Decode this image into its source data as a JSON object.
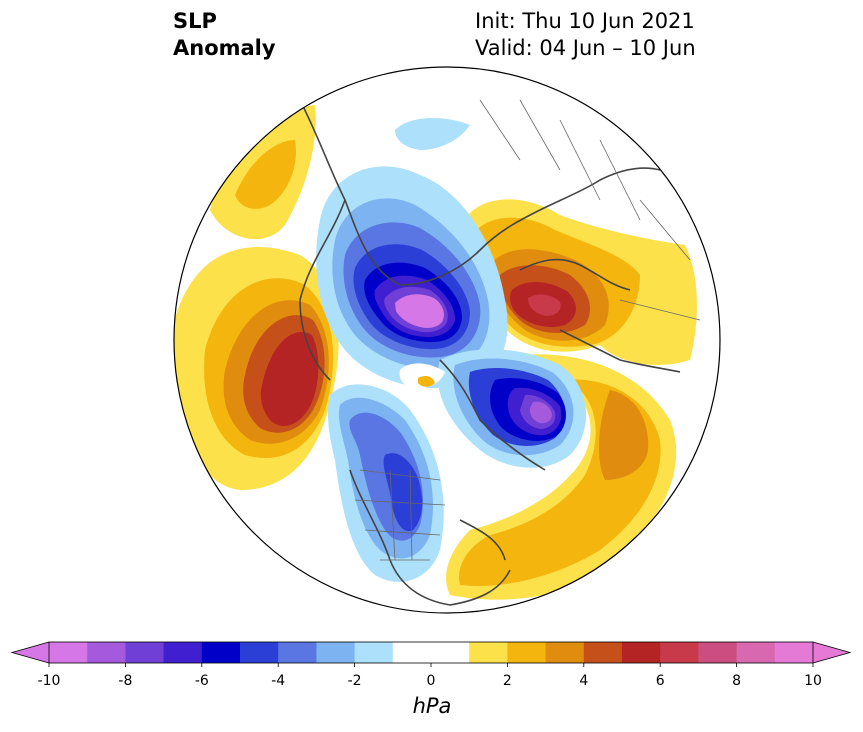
{
  "title": {
    "variable": "SLP",
    "variable_sub": "Anomaly",
    "init": "Init: Thu 10 Jun 2021",
    "valid": "Valid: 04 Jun – 10 Jun"
  },
  "colorbar": {
    "unit": "hPa",
    "ticks": [
      "-10",
      "-8",
      "-6",
      "-4",
      "-2",
      "0",
      "2",
      "4",
      "6",
      "8",
      "10"
    ],
    "colors": [
      "#d577e6",
      "#a55add",
      "#7040d6",
      "#3f1fcf",
      "#0000c8",
      "#2b3ed6",
      "#5a76e2",
      "#7db3f0",
      "#ade0fb",
      "#ffffff",
      "#ffffff",
      "#fde14a",
      "#f3b50e",
      "#e08c0f",
      "#c6501a",
      "#b52424",
      "#c83a4a",
      "#cc4e80",
      "#d868b0",
      "#e47ad6"
    ]
  },
  "map": {
    "projection": "north polar stereographic",
    "anomalies": [
      {
        "region": "North Pole",
        "sign": "negative",
        "peak_hpa": -10
      },
      {
        "region": "Greenland / Baffin Bay",
        "sign": "negative",
        "peak_hpa": -9
      },
      {
        "region": "Northern Canada / Central US",
        "sign": "negative",
        "peak_hpa": -5
      },
      {
        "region": "Central Siberia",
        "sign": "positive",
        "peak_hpa": 7
      },
      {
        "region": "North Pacific",
        "sign": "positive",
        "peak_hpa": 6
      },
      {
        "region": "North Atlantic",
        "sign": "positive",
        "peak_hpa": 4
      },
      {
        "region": "Western Atlantic / US East Coast",
        "sign": "positive",
        "peak_hpa": 2
      }
    ]
  }
}
